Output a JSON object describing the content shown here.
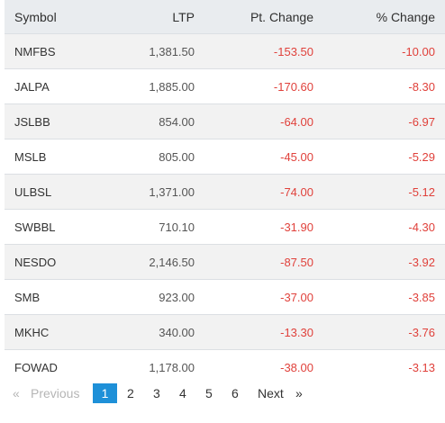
{
  "table": {
    "headers": {
      "symbol": "Symbol",
      "ltp": "LTP",
      "pt_change": "Pt. Change",
      "pct_change": "% Change"
    },
    "rows": [
      {
        "symbol": "NMFBS",
        "ltp": "1,381.50",
        "pt_change": "-153.50",
        "pct_change": "-10.00"
      },
      {
        "symbol": "JALPA",
        "ltp": "1,885.00",
        "pt_change": "-170.60",
        "pct_change": "-8.30"
      },
      {
        "symbol": "JSLBB",
        "ltp": "854.00",
        "pt_change": "-64.00",
        "pct_change": "-6.97"
      },
      {
        "symbol": "MSLB",
        "ltp": "805.00",
        "pt_change": "-45.00",
        "pct_change": "-5.29"
      },
      {
        "symbol": "ULBSL",
        "ltp": "1,371.00",
        "pt_change": "-74.00",
        "pct_change": "-5.12"
      },
      {
        "symbol": "SWBBL",
        "ltp": "710.10",
        "pt_change": "-31.90",
        "pct_change": "-4.30"
      },
      {
        "symbol": "NESDO",
        "ltp": "2,146.50",
        "pt_change": "-87.50",
        "pct_change": "-3.92"
      },
      {
        "symbol": "SMB",
        "ltp": "923.00",
        "pt_change": "-37.00",
        "pct_change": "-3.85"
      },
      {
        "symbol": "MKHC",
        "ltp": "340.00",
        "pt_change": "-13.30",
        "pct_change": "-3.76"
      },
      {
        "symbol": "FOWAD",
        "ltp": "1,178.00",
        "pt_change": "-38.00",
        "pct_change": "-3.13"
      }
    ]
  },
  "pagination": {
    "first_glyph": "«",
    "previous_label": "Previous",
    "pages": [
      "1",
      "2",
      "3",
      "4",
      "5",
      "6"
    ],
    "current_page": "1",
    "next_label": "Next",
    "last_glyph": "»"
  },
  "colors": {
    "negative": "#e0413b",
    "header_bg": "#e9ecef",
    "stripe_bg": "#f2f2f2",
    "active_page_bg": "#1e90d8"
  }
}
